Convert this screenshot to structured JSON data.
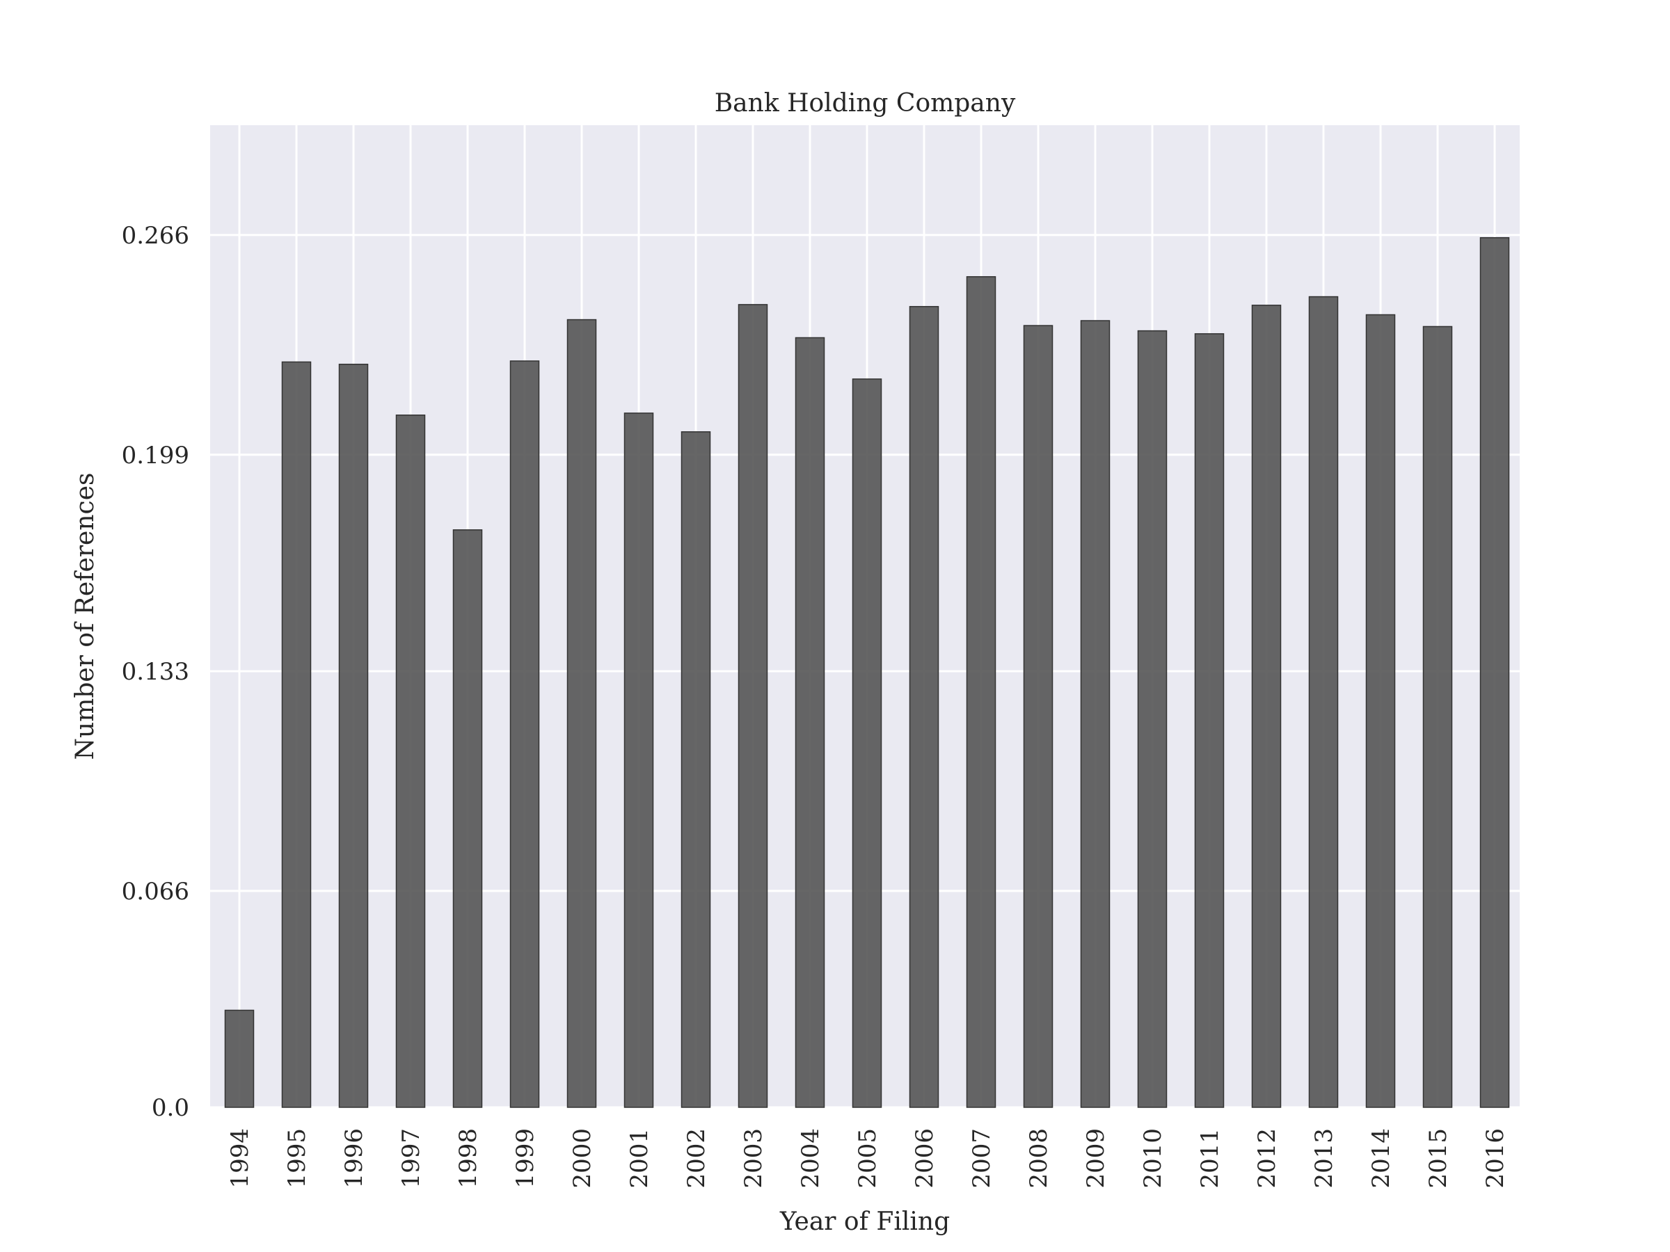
{
  "chart_data": {
    "type": "bar",
    "title": "Bank Holding Company",
    "xlabel": "Year of Filing",
    "ylabel": "Number of References",
    "categories": [
      "1994",
      "1995",
      "1996",
      "1997",
      "1998",
      "1999",
      "2000",
      "2001",
      "2002",
      "2003",
      "2004",
      "2005",
      "2006",
      "2007",
      "2008",
      "2009",
      "2010",
      "2011",
      "2012",
      "2013",
      "2014",
      "2015",
      "2016"
    ],
    "values": [
      0.0296,
      0.2273,
      0.2266,
      0.2111,
      0.1761,
      0.2276,
      0.2402,
      0.2117,
      0.206,
      0.2448,
      0.2347,
      0.2221,
      0.2442,
      0.2533,
      0.2384,
      0.2399,
      0.2368,
      0.2359,
      0.2446,
      0.2472,
      0.2417,
      0.2381,
      0.2652
    ],
    "yticks": [
      0.0,
      0.066,
      0.133,
      0.199,
      0.266
    ],
    "ytick_labels": [
      "0.0",
      "0.066",
      "0.133",
      "0.199",
      "0.266"
    ],
    "ylim": [
      0,
      0.2995
    ],
    "grid": true,
    "colors": {
      "bar": "#555555",
      "background": "#eaeaf2",
      "grid": "#ffffff"
    }
  }
}
